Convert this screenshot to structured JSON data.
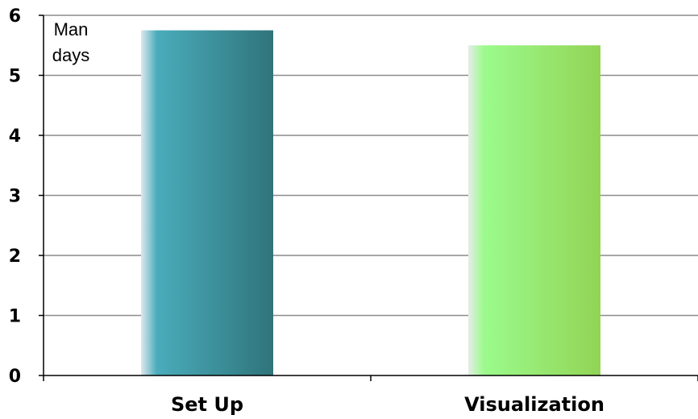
{
  "chart_data": {
    "type": "bar",
    "categories": [
      "Set Up",
      "Visualization"
    ],
    "values": [
      5.75,
      5.5
    ],
    "ylim": [
      0,
      6
    ],
    "yticks": [
      "0",
      "1",
      "2",
      "3",
      "4",
      "5",
      "6"
    ],
    "unit_label": [
      "Man",
      "days"
    ],
    "grid": true,
    "legend": "none",
    "colors": [
      {
        "start": "#dfe7ee",
        "mid": "#4aacbb",
        "end": "#2f747a"
      },
      {
        "start": "#e6ece8",
        "mid": "#9bfb8c",
        "end": "#92d455"
      }
    ]
  }
}
